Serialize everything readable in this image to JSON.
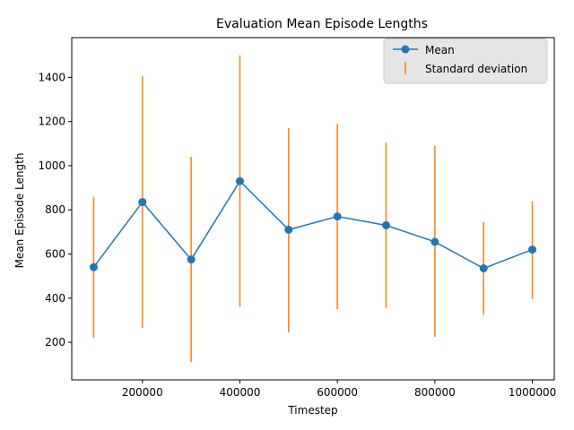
{
  "chart_data": {
    "type": "line",
    "title": "Evaluation Mean Episode Lengths",
    "xlabel": "Timestep",
    "ylabel": "Mean Episode Length",
    "xlim": [
      55000,
      1045000
    ],
    "ylim": [
      30,
      1580
    ],
    "xticks": [
      200000,
      400000,
      600000,
      800000,
      1000000
    ],
    "yticks": [
      200,
      400,
      600,
      800,
      1000,
      1200,
      1400
    ],
    "x": [
      100000,
      200000,
      300000,
      400000,
      500000,
      600000,
      700000,
      800000,
      900000,
      1000000
    ],
    "series": [
      {
        "name": "Mean",
        "color": "#1f77b4",
        "marker": "circle",
        "values": [
          540,
          835,
          575,
          930,
          710,
          770,
          730,
          655,
          535,
          620
        ]
      }
    ],
    "error_bars": {
      "name": "Standard deviation",
      "color": "#ff7f0e",
      "low": [
        220,
        265,
        110,
        360,
        245,
        350,
        355,
        225,
        325,
        395
      ],
      "high": [
        860,
        1405,
        1040,
        1500,
        1170,
        1190,
        1105,
        1090,
        745,
        840
      ]
    },
    "grid": false,
    "legend": {
      "position": "top-right",
      "entries": [
        "Mean",
        "Standard deviation"
      ]
    }
  }
}
